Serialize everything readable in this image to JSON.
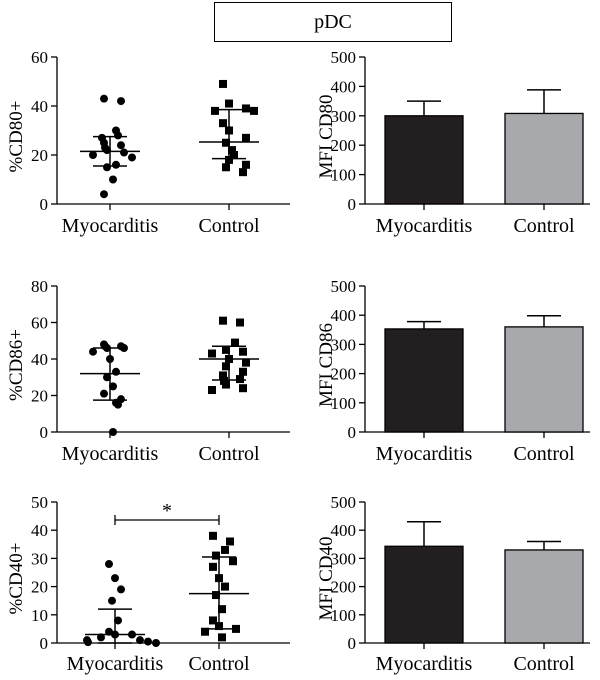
{
  "figure_title": "pDC",
  "colors": {
    "myocarditis": "#231f20",
    "control": "#a7a9ac",
    "axis": "#000000"
  },
  "chart_data": [
    {
      "type": "scatter",
      "panel": "top-left",
      "ylabel": "%CD80+",
      "ylim": [
        0,
        60
      ],
      "yticks": [
        0,
        20,
        40,
        60
      ],
      "categories": [
        "Myocarditis",
        "Control"
      ],
      "series": [
        {
          "marker": "circle",
          "values": [
            43,
            42,
            30,
            28,
            27,
            25,
            24,
            23,
            22,
            21,
            20,
            19,
            16,
            15,
            10,
            4
          ],
          "mean": 21.5,
          "sd_low": 15.5,
          "sd_high": 27.5
        },
        {
          "marker": "square",
          "values": [
            49,
            41,
            39,
            38,
            38,
            33,
            30,
            27,
            25,
            22,
            20,
            18,
            16,
            15,
            13
          ],
          "mean": 25.3,
          "sd_low": 18.5,
          "sd_high": 38.5
        }
      ]
    },
    {
      "type": "bar",
      "panel": "top-right",
      "ylabel": "MFI CD80",
      "ylim": [
        0,
        500
      ],
      "yticks": [
        0,
        100,
        200,
        300,
        400,
        500
      ],
      "categories": [
        "Myocarditis",
        "Control"
      ],
      "values": [
        300,
        308
      ],
      "errors": [
        350,
        388
      ]
    },
    {
      "type": "scatter",
      "panel": "middle-left",
      "ylabel": "%CD86+",
      "ylim": [
        0,
        80
      ],
      "yticks": [
        0,
        20,
        40,
        60,
        80
      ],
      "categories": [
        "Myocarditis",
        "Control"
      ],
      "series": [
        {
          "marker": "circle",
          "values": [
            48,
            47,
            47,
            46,
            46,
            44,
            40,
            33,
            30,
            25,
            21,
            18,
            16,
            15,
            0
          ],
          "mean": 32,
          "sd_low": 17.5,
          "sd_high": 46
        },
        {
          "marker": "square",
          "values": [
            61,
            60,
            49,
            45,
            44,
            43,
            40,
            38,
            36,
            33,
            31,
            29,
            28,
            26,
            24,
            23
          ],
          "mean": 40,
          "sd_low": 28.5,
          "sd_high": 47
        }
      ]
    },
    {
      "type": "bar",
      "panel": "middle-right",
      "ylabel": "MFI CD86",
      "ylim": [
        0,
        500
      ],
      "yticks": [
        0,
        100,
        200,
        300,
        400,
        500
      ],
      "categories": [
        "Myocarditis",
        "Control"
      ],
      "values": [
        353,
        360
      ],
      "errors": [
        378,
        398
      ]
    },
    {
      "type": "scatter",
      "panel": "bottom-left",
      "ylabel": "%CD40+",
      "ylim": [
        0,
        50
      ],
      "yticks": [
        0,
        10,
        20,
        30,
        40,
        50
      ],
      "categories": [
        "Myocarditis",
        "Control"
      ],
      "annotation": "*",
      "series": [
        {
          "marker": "circle",
          "values": [
            28,
            23,
            19,
            15,
            8,
            4,
            3,
            3,
            2,
            1,
            1,
            0.5,
            0.3,
            0
          ],
          "mean": 3,
          "sd_low": 0,
          "sd_high": 12
        },
        {
          "marker": "square",
          "values": [
            38,
            36,
            33,
            31,
            29,
            27,
            23,
            20,
            17,
            12,
            8,
            6,
            5,
            4,
            2
          ],
          "mean": 17.5,
          "sd_low": 5,
          "sd_high": 30.5
        }
      ]
    },
    {
      "type": "bar",
      "panel": "bottom-right",
      "ylabel": "MFI CD40",
      "ylim": [
        0,
        500
      ],
      "yticks": [
        0,
        100,
        200,
        300,
        400,
        500
      ],
      "categories": [
        "Myocarditis",
        "Control"
      ],
      "values": [
        343,
        330
      ],
      "errors": [
        430,
        360
      ]
    }
  ]
}
